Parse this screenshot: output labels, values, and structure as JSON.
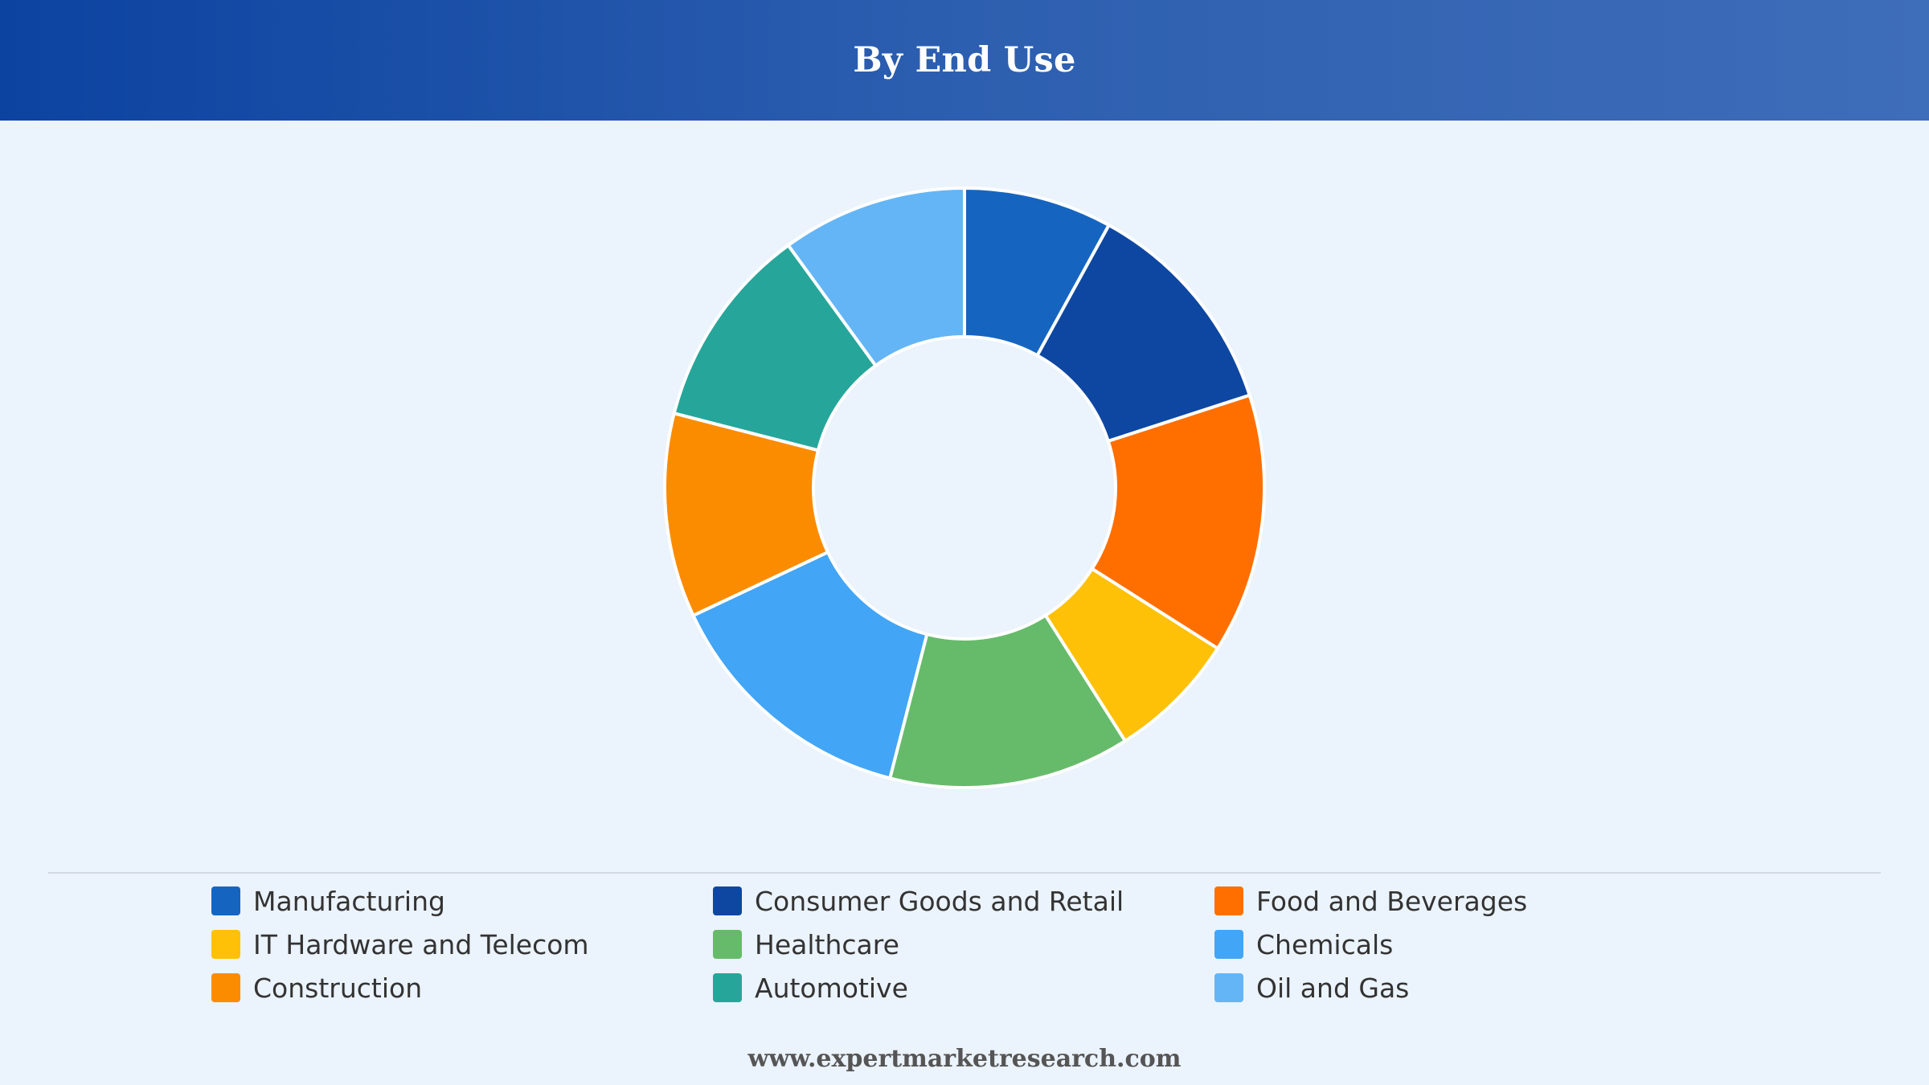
{
  "header": {
    "title": "By End Use"
  },
  "chart_data": {
    "type": "pie",
    "donut": true,
    "title": "By End Use",
    "categories": [
      "Manufacturing",
      "Consumer Goods and Retail",
      "Food and Beverages",
      "IT Hardware and Telecom",
      "Healthcare",
      "Chemicals",
      "Construction",
      "Automotive",
      "Oil and Gas"
    ],
    "slice_order": [
      "Manufacturing",
      "Consumer Goods and Retail",
      "Food and Beverages",
      "IT Hardware and Telecom",
      "Healthcare",
      "Chemicals",
      "Construction",
      "Automotive",
      "Oil and Gas"
    ],
    "values": [
      8.0,
      12.0,
      14.0,
      7.0,
      13.0,
      14.0,
      11.0,
      11.0,
      10.0
    ],
    "colors": [
      "#1565c0",
      "#0d47a1",
      "#ff6f00",
      "#ffc107",
      "#66bb6a",
      "#42a5f5",
      "#fb8c00",
      "#26a69a",
      "#64b5f6"
    ],
    "legend_position": "bottom"
  },
  "footer": {
    "website": "www.expertmarketresearch.com"
  }
}
